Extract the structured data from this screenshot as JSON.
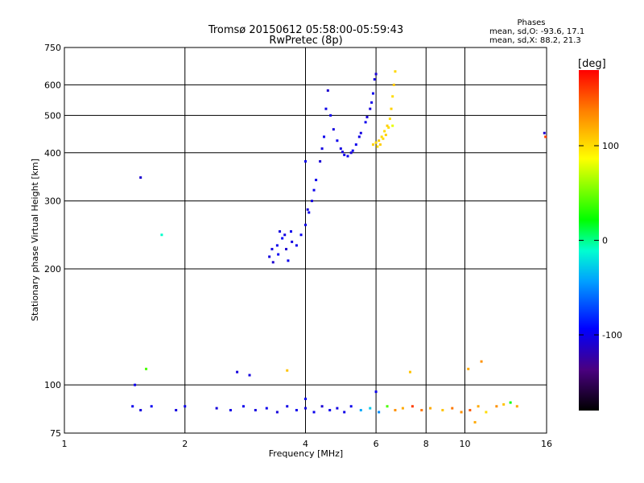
{
  "chart_data": {
    "type": "scatter",
    "title": "Tromsø 20150612 05:58:00-05:59:43",
    "subtitle": "RwPretec (8p)",
    "xlabel": "Frequency [MHz]",
    "ylabel": "Stationary phase Virtual Height [km]",
    "xscale": "log",
    "yscale": "log",
    "xlim": [
      1,
      16
    ],
    "ylim": [
      75,
      750
    ],
    "xticks": [
      1,
      2,
      4,
      6,
      8,
      10,
      16
    ],
    "yticks": [
      75,
      100,
      200,
      300,
      400,
      500,
      600,
      750
    ],
    "grid": true,
    "phases": {
      "header": "Phases",
      "line_o": "mean, sd,O: -93.6, 17.1",
      "line_x": "mean, sd,X:  88.2, 21.3"
    },
    "colorbar": {
      "label": "[deg]",
      "range": [
        -180,
        180
      ],
      "ticks": [
        100,
        0,
        -100
      ],
      "colormap": "rainbow"
    },
    "series": [
      {
        "points": [
          [
            3.25,
            215,
            -105
          ],
          [
            3.32,
            208,
            -110
          ],
          [
            3.4,
            230,
            -100
          ],
          [
            3.45,
            250,
            -105
          ],
          [
            3.5,
            240,
            -95
          ],
          [
            3.58,
            225,
            -110
          ],
          [
            3.62,
            210,
            -100
          ],
          [
            3.7,
            235,
            -105
          ],
          [
            3.8,
            230,
            -100
          ],
          [
            3.9,
            245,
            -98
          ],
          [
            4.0,
            260,
            -102
          ],
          [
            4.08,
            280,
            -100
          ],
          [
            4.15,
            300,
            -105
          ],
          [
            4.25,
            340,
            -100
          ],
          [
            4.35,
            380,
            -108
          ],
          [
            4.45,
            440,
            -100
          ],
          [
            4.5,
            520,
            -102
          ],
          [
            4.55,
            580,
            -110
          ],
          [
            4.62,
            500,
            -100
          ],
          [
            4.7,
            460,
            -105
          ],
          [
            4.8,
            430,
            -100
          ],
          [
            4.9,
            410,
            -104
          ],
          [
            5.0,
            395,
            -102
          ],
          [
            5.1,
            392,
            -100
          ],
          [
            5.2,
            400,
            -108
          ],
          [
            5.35,
            420,
            -100
          ],
          [
            5.5,
            450,
            -104
          ],
          [
            5.65,
            480,
            -100
          ],
          [
            5.8,
            520,
            -106
          ],
          [
            5.9,
            570,
            -100
          ],
          [
            5.95,
            620,
            -104
          ],
          [
            6.0,
            640,
            -108
          ],
          [
            3.3,
            225,
            -104
          ],
          [
            3.42,
            218,
            -98
          ],
          [
            3.55,
            245,
            -104
          ],
          [
            3.68,
            250,
            -100
          ],
          [
            4.05,
            285,
            -106
          ],
          [
            4.2,
            320,
            -100
          ],
          [
            4.4,
            410,
            -104
          ],
          [
            4.95,
            402,
            -106
          ],
          [
            5.25,
            405,
            -100
          ],
          [
            5.45,
            440,
            -103
          ],
          [
            5.7,
            495,
            -107
          ],
          [
            5.85,
            540,
            -101
          ],
          [
            4.0,
            380,
            -100
          ],
          [
            1.55,
            345,
            -110
          ],
          [
            1.75,
            245,
            -10
          ],
          [
            2.7,
            108,
            -105
          ]
        ]
      },
      {
        "points": [
          [
            5.9,
            420,
            105
          ],
          [
            6.0,
            425,
            100
          ],
          [
            6.1,
            430,
            108
          ],
          [
            6.2,
            440,
            102
          ],
          [
            6.3,
            455,
            100
          ],
          [
            6.4,
            470,
            106
          ],
          [
            6.5,
            490,
            100
          ],
          [
            6.55,
            520,
            104
          ],
          [
            6.6,
            560,
            100
          ],
          [
            6.65,
            600,
            108
          ],
          [
            6.7,
            650,
            102
          ],
          [
            6.05,
            415,
            100
          ],
          [
            6.15,
            420,
            106
          ],
          [
            6.25,
            435,
            100
          ],
          [
            6.35,
            445,
            104
          ],
          [
            6.45,
            465,
            100
          ],
          [
            6.6,
            470,
            80
          ],
          [
            7.3,
            108,
            110
          ],
          [
            10.2,
            110,
            120
          ],
          [
            11.0,
            115,
            130
          ],
          [
            1.6,
            110,
            40
          ],
          [
            3.6,
            109,
            110
          ]
        ]
      },
      {
        "points": [
          [
            1.48,
            88,
            -100
          ],
          [
            1.55,
            86,
            -105
          ],
          [
            1.65,
            88,
            -98
          ],
          [
            1.9,
            86,
            -104
          ],
          [
            2.0,
            88,
            -100
          ],
          [
            2.4,
            87,
            -106
          ],
          [
            2.6,
            86,
            -102
          ],
          [
            2.8,
            88,
            -100
          ],
          [
            3.0,
            86,
            -104
          ],
          [
            3.2,
            87,
            -100
          ],
          [
            3.4,
            85,
            -106
          ],
          [
            3.6,
            88,
            -102
          ],
          [
            3.8,
            86,
            -100
          ],
          [
            4.0,
            87,
            -104
          ],
          [
            4.2,
            85,
            -100
          ],
          [
            4.4,
            88,
            -108
          ],
          [
            4.6,
            86,
            -100
          ],
          [
            4.8,
            87,
            -104
          ],
          [
            5.0,
            85,
            -102
          ],
          [
            5.2,
            88,
            -100
          ],
          [
            5.5,
            86,
            -40
          ],
          [
            5.8,
            87,
            -30
          ],
          [
            6.1,
            85,
            -50
          ],
          [
            6.4,
            88,
            40
          ],
          [
            6.7,
            86,
            130
          ],
          [
            7.0,
            87,
            120
          ],
          [
            7.4,
            88,
            160
          ],
          [
            7.8,
            86,
            140
          ],
          [
            8.2,
            87,
            120
          ],
          [
            8.8,
            86,
            110
          ],
          [
            9.3,
            87,
            140
          ],
          [
            9.8,
            85,
            130
          ],
          [
            10.3,
            86,
            150
          ],
          [
            10.8,
            88,
            120
          ],
          [
            11.3,
            85,
            100
          ],
          [
            12.0,
            88,
            130
          ],
          [
            12.5,
            89,
            110
          ],
          [
            13.0,
            90,
            20
          ],
          [
            13.5,
            88,
            120
          ],
          [
            4.0,
            92,
            -100
          ],
          [
            1.5,
            100,
            -100
          ],
          [
            2.9,
            106,
            -105
          ],
          [
            6.0,
            96,
            -100
          ],
          [
            10.6,
            80,
            120
          ]
        ]
      },
      {
        "points": [
          [
            15.8,
            450,
            -110
          ],
          [
            15.9,
            440,
            160
          ]
        ]
      }
    ]
  }
}
